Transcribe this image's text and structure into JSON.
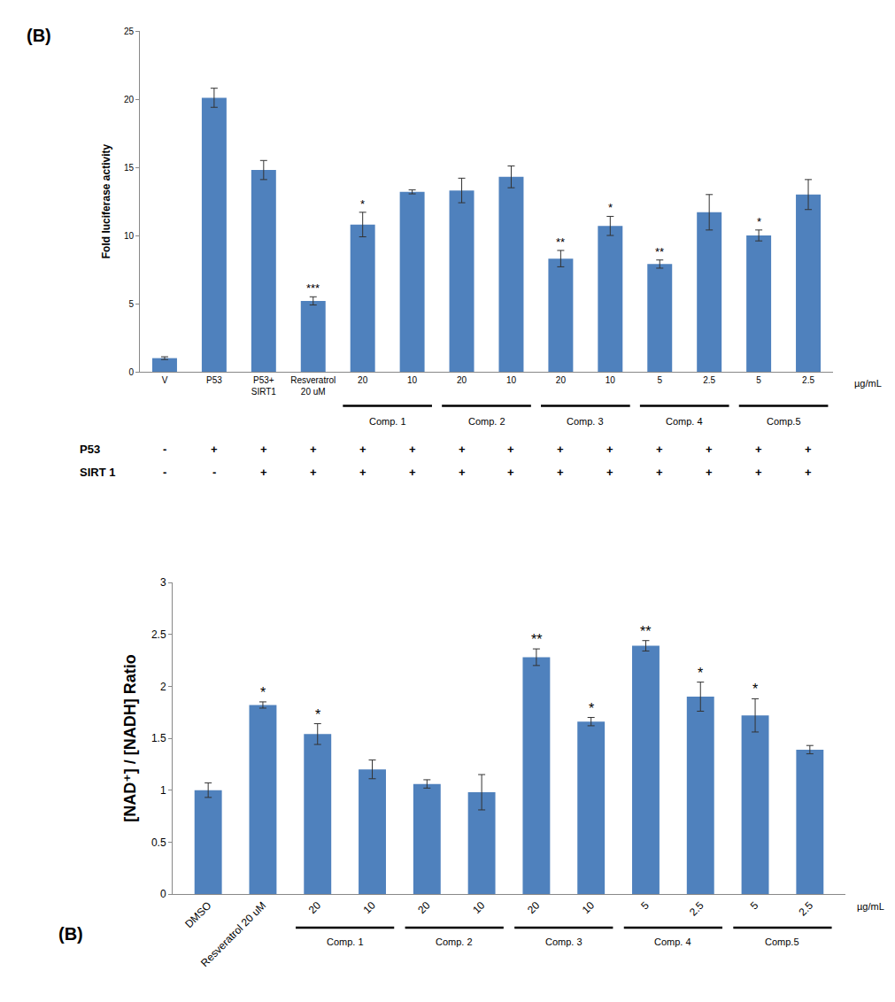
{
  "chart_data": [
    {
      "type": "bar",
      "panel_label": "(B)",
      "y_label": "Fold luciferase activity",
      "categories": [
        "V",
        "P53",
        "P53+\nSIRT1",
        "Resveratrol\n20 uM",
        "20",
        "10",
        "20",
        "10",
        "20",
        "10",
        "5",
        "2.5",
        "5",
        "2.5"
      ],
      "values": [
        1.0,
        20.1,
        14.8,
        5.2,
        10.8,
        13.2,
        13.3,
        14.3,
        8.3,
        10.7,
        7.9,
        11.7,
        10.0,
        13.0
      ],
      "errors": [
        0.1,
        0.7,
        0.7,
        0.3,
        0.9,
        0.15,
        0.9,
        0.8,
        0.6,
        0.7,
        0.3,
        1.3,
        0.4,
        1.1
      ],
      "significance": [
        null,
        null,
        null,
        "***",
        "*",
        null,
        null,
        null,
        "**",
        "*",
        "**",
        null,
        "*",
        null
      ],
      "color": "#4f81bd",
      "ylim": [
        0,
        25
      ],
      "yticks": [
        0,
        5,
        10,
        15,
        20,
        25
      ],
      "grid": false,
      "unit_label": "µg/mL",
      "groups": [
        {
          "label": "Comp. 1",
          "start": 4,
          "end": 5
        },
        {
          "label": "Comp. 2",
          "start": 6,
          "end": 7
        },
        {
          "label": "Comp. 3",
          "start": 8,
          "end": 9
        },
        {
          "label": "Comp. 4",
          "start": 10,
          "end": 11
        },
        {
          "label": "Comp.5",
          "start": 12,
          "end": 13
        }
      ],
      "treatment_rows": [
        {
          "label": "P53",
          "marks": [
            "-",
            "+",
            "+",
            "+",
            "+",
            "+",
            "+",
            "+",
            "+",
            "+",
            "+",
            "+",
            "+",
            "+"
          ]
        },
        {
          "label": "SIRT 1",
          "marks": [
            "-",
            "-",
            "+",
            "+",
            "+",
            "+",
            "+",
            "+",
            "+",
            "+",
            "+",
            "+",
            "+",
            "+"
          ]
        }
      ]
    },
    {
      "type": "bar",
      "panel_label": "(B)",
      "y_label": "[NAD⁺] / [NADH] Ratio",
      "categories": [
        "DMSO",
        "Resveratrol 20 uM",
        "20",
        "10",
        "20",
        "10",
        "20",
        "10",
        "5",
        "2.5",
        "5",
        "2.5"
      ],
      "values": [
        1.0,
        1.82,
        1.54,
        1.2,
        1.06,
        0.98,
        2.28,
        1.66,
        2.39,
        1.9,
        1.72,
        1.39
      ],
      "errors": [
        0.07,
        0.03,
        0.1,
        0.09,
        0.04,
        0.17,
        0.08,
        0.04,
        0.05,
        0.14,
        0.16,
        0.04
      ],
      "significance": [
        null,
        "*",
        "*",
        null,
        null,
        null,
        "**",
        "*",
        "**",
        "*",
        "*",
        null
      ],
      "color": "#4f81bd",
      "ylim": [
        0,
        3
      ],
      "yticks": [
        0,
        0.5,
        1,
        1.5,
        2,
        2.5,
        3
      ],
      "grid": false,
      "unit_label": "µg/mL",
      "groups": [
        {
          "label": "Comp. 1",
          "start": 2,
          "end": 3
        },
        {
          "label": "Comp. 2",
          "start": 4,
          "end": 5
        },
        {
          "label": "Comp. 3",
          "start": 6,
          "end": 7
        },
        {
          "label": "Comp. 4",
          "start": 8,
          "end": 9
        },
        {
          "label": "Comp.5",
          "start": 10,
          "end": 11
        }
      ]
    }
  ]
}
